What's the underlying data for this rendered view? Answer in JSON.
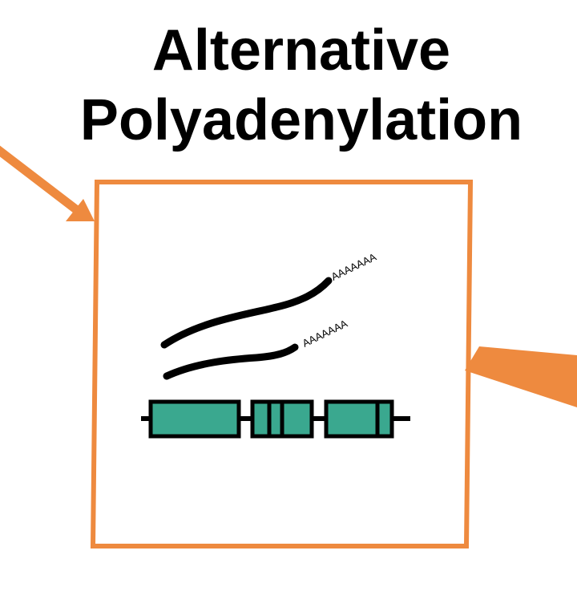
{
  "title": {
    "line1": "Alternative",
    "line2": "Polyadenylation"
  },
  "diagram": {
    "transcripts": [
      {
        "tail_label": "AAAAAAA"
      },
      {
        "tail_label": "AAAAAAA"
      }
    ],
    "colors": {
      "frame": "#ee8a3f",
      "arrow": "#ee8a3f",
      "exon_fill": "#3aa88f",
      "outline": "#000000"
    }
  }
}
